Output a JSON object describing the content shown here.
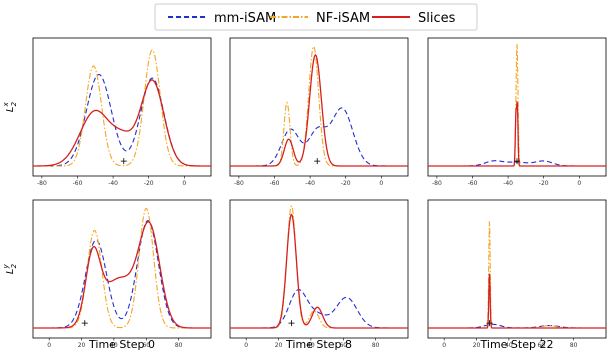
{
  "legend": [
    {
      "name": "mm-iSAM",
      "color": "#1f2fd0",
      "dash": "5,3"
    },
    {
      "name": "NF-iSAM",
      "color": "#f5a623",
      "dash": "6,2,1.5,2"
    },
    {
      "name": "Slices",
      "color": "#d62020",
      "dash": ""
    }
  ],
  "row_labels": [
    {
      "base": "L",
      "sub": "2",
      "sup": "x"
    },
    {
      "base": "L",
      "sub": "2",
      "sup": "y"
    }
  ],
  "col_labels": [
    "Time Step 0",
    "Time Step 8",
    "Time Step 22"
  ],
  "chart_data": [
    {
      "type": "line",
      "row": 0,
      "col": 0,
      "xlim": [
        -85,
        15
      ],
      "xticks": [
        "-80",
        "-60",
        "-40",
        "-20",
        "0"
      ],
      "tick_values": [
        -80,
        -60,
        -40,
        -20,
        0
      ],
      "marker": [
        -34,
        0.04
      ],
      "series": [
        {
          "name": "mm-iSAM",
          "peaks": [
            [
              -48,
              0.75,
              7
            ],
            [
              -18,
              0.72,
              6.5
            ]
          ]
        },
        {
          "name": "NF-iSAM",
          "peaks": [
            [
              -51,
              0.82,
              4.5
            ],
            [
              -18,
              0.95,
              4.5
            ]
          ]
        },
        {
          "name": "Slices",
          "peaks": [
            [
              -50,
              0.45,
              8.5
            ],
            [
              -18,
              0.7,
              6.5
            ],
            [
              -34,
              0.18,
              6
            ]
          ]
        }
      ]
    },
    {
      "type": "line",
      "row": 0,
      "col": 1,
      "xlim": [
        -85,
        15
      ],
      "xticks": [
        "-80",
        "-60",
        "-40",
        "-20",
        "0"
      ],
      "tick_values": [
        -80,
        -60,
        -40,
        -20,
        0
      ],
      "marker": [
        -36,
        0.04
      ],
      "series": [
        {
          "name": "mm-iSAM",
          "peaks": [
            [
              -51,
              0.3,
              5
            ],
            [
              -36,
              0.28,
              5
            ],
            [
              -22,
              0.47,
              6
            ]
          ]
        },
        {
          "name": "NF-iSAM",
          "peaks": [
            [
              -53,
              0.52,
              1.7
            ],
            [
              -38,
              0.98,
              2.8
            ]
          ]
        },
        {
          "name": "Slices",
          "peaks": [
            [
              -52,
              0.22,
              2.5
            ],
            [
              -37,
              0.91,
              3.3
            ]
          ]
        }
      ]
    },
    {
      "type": "line",
      "row": 0,
      "col": 2,
      "xlim": [
        -85,
        15
      ],
      "xticks": [
        "-80",
        "-60",
        "-40",
        "-20",
        "0"
      ],
      "tick_values": [
        -80,
        -60,
        -40,
        -20,
        0
      ],
      "marker": [
        -35,
        0.04
      ],
      "series": [
        {
          "name": "mm-iSAM",
          "peaks": [
            [
              -48,
              0.04,
              5
            ],
            [
              -35,
              0.03,
              6
            ],
            [
              -20,
              0.04,
              5
            ]
          ]
        },
        {
          "name": "NF-iSAM",
          "peaks": [
            [
              -35,
              1.0,
              0.55
            ]
          ]
        },
        {
          "name": "Slices",
          "peaks": [
            [
              -35.6,
              0.42,
              0.35
            ],
            [
              -34.8,
              0.5,
              0.35
            ]
          ]
        }
      ]
    },
    {
      "type": "line",
      "row": 1,
      "col": 0,
      "xlim": [
        -10,
        100
      ],
      "xticks": [
        "0",
        "20",
        "40",
        "60",
        "80"
      ],
      "tick_values": [
        0,
        20,
        40,
        60,
        80
      ],
      "marker": [
        22,
        0.04
      ],
      "series": [
        {
          "name": "mm-iSAM",
          "peaks": [
            [
              29,
              0.72,
              6.5
            ],
            [
              61,
              0.88,
              6.5
            ]
          ]
        },
        {
          "name": "NF-iSAM",
          "peaks": [
            [
              28,
              0.8,
              4.5
            ],
            [
              60,
              0.98,
              4.5
            ]
          ]
        },
        {
          "name": "Slices",
          "peaks": [
            [
              27,
              0.55,
              4.5
            ],
            [
              62,
              0.8,
              6.5
            ],
            [
              43,
              0.4,
              10
            ]
          ]
        }
      ]
    },
    {
      "type": "line",
      "row": 1,
      "col": 1,
      "xlim": [
        -10,
        100
      ],
      "xticks": [
        "0",
        "20",
        "40",
        "60",
        "80"
      ],
      "tick_values": [
        0,
        20,
        40,
        60,
        80
      ],
      "marker": [
        28,
        0.04
      ],
      "series": [
        {
          "name": "mm-iSAM",
          "peaks": [
            [
              32,
              0.3,
              5.5
            ],
            [
              62,
              0.25,
              6.5
            ],
            [
              44,
              0.1,
              6
            ]
          ]
        },
        {
          "name": "NF-iSAM",
          "peaks": [
            [
              28,
              1.0,
              2.8
            ],
            [
              42,
              0.14,
              3
            ]
          ]
        },
        {
          "name": "Slices",
          "peaks": [
            [
              28,
              0.93,
              3
            ],
            [
              44,
              0.17,
              3.2
            ]
          ]
        }
      ]
    },
    {
      "type": "line",
      "row": 1,
      "col": 2,
      "xlim": [
        -10,
        100
      ],
      "xticks": [
        "0",
        "20",
        "40",
        "60",
        "80"
      ],
      "tick_values": [
        0,
        20,
        40,
        60,
        80
      ],
      "marker": [
        28,
        0.04
      ],
      "series": [
        {
          "name": "mm-iSAM",
          "peaks": [
            [
              30,
              0.03,
              5
            ],
            [
              65,
              0.02,
              6
            ]
          ]
        },
        {
          "name": "NF-iSAM",
          "peaks": [
            [
              28,
              0.88,
              0.45
            ],
            [
              65,
              0.02,
              4
            ]
          ]
        },
        {
          "name": "Slices",
          "peaks": [
            [
              28,
              0.45,
              0.4
            ]
          ]
        }
      ]
    }
  ]
}
